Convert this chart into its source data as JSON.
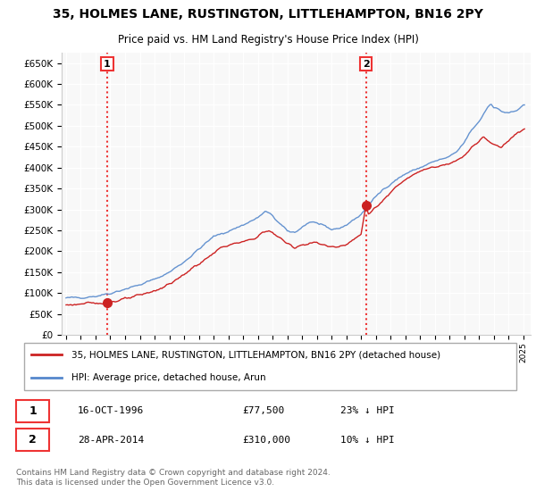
{
  "title": "35, HOLMES LANE, RUSTINGTON, LITTLEHAMPTON, BN16 2PY",
  "subtitle": "Price paid vs. HM Land Registry's House Price Index (HPI)",
  "legend_line1": "35, HOLMES LANE, RUSTINGTON, LITTLEHAMPTON, BN16 2PY (detached house)",
  "legend_line2": "HPI: Average price, detached house, Arun",
  "transaction1_date": "16-OCT-1996",
  "transaction1_price": "£77,500",
  "transaction1_hpi": "23% ↓ HPI",
  "transaction2_date": "28-APR-2014",
  "transaction2_price": "£310,000",
  "transaction2_hpi": "10% ↓ HPI",
  "footnote": "Contains HM Land Registry data © Crown copyright and database right 2024.\nThis data is licensed under the Open Government Licence v3.0.",
  "hpi_color": "#5588cc",
  "price_color": "#cc2222",
  "marker_color": "#cc2222",
  "vline_color": "#ee3333",
  "ylim": [
    0,
    675000
  ],
  "yticks": [
    0,
    50000,
    100000,
    150000,
    200000,
    250000,
    300000,
    350000,
    400000,
    450000,
    500000,
    550000,
    600000,
    650000
  ],
  "transaction1_year": 1996.79,
  "transaction1_value": 77500,
  "transaction2_year": 2014.33,
  "transaction2_value": 310000,
  "xlim_start": 1993.7,
  "xlim_end": 2025.5
}
